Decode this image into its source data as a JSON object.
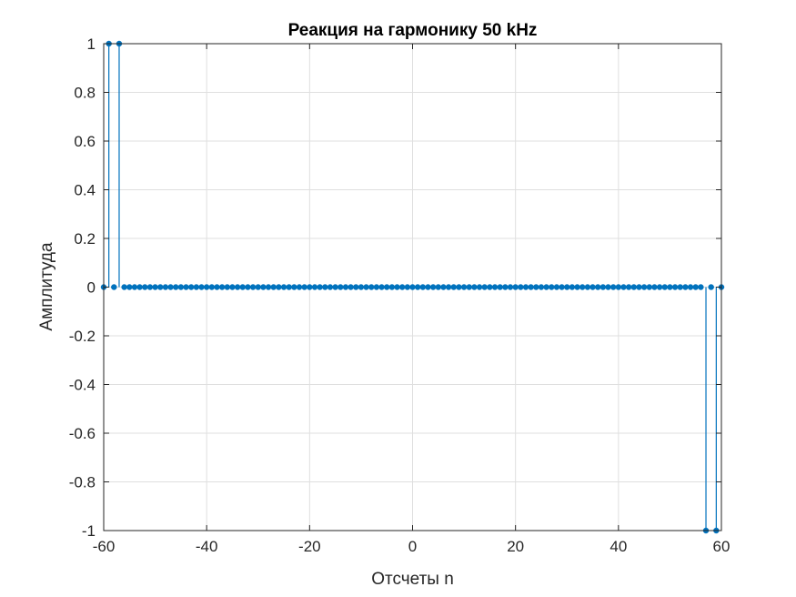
{
  "chart_data": {
    "type": "stem",
    "title": "Реакция на гармонику 50 kHz",
    "xlabel": "Отсчеты n",
    "ylabel": "Амплитуда",
    "xlim": [
      -60,
      60
    ],
    "ylim": [
      -1,
      1
    ],
    "grid": true,
    "x_ticks": [
      -60,
      -40,
      -20,
      0,
      20,
      40,
      60
    ],
    "x_tick_labels": [
      "-60",
      "-40",
      "-20",
      "0",
      "20",
      "40",
      "60"
    ],
    "y_ticks": [
      -1,
      -0.8,
      -0.6,
      -0.4,
      -0.2,
      0,
      0.2,
      0.4,
      0.6,
      0.8,
      1
    ],
    "y_tick_labels": [
      "-1",
      "-0.8",
      "-0.6",
      "-0.4",
      "-0.2",
      "0",
      "0.2",
      "0.4",
      "0.6",
      "0.8",
      "1"
    ],
    "series_color": "#0072BD",
    "x_range": [
      -60,
      60
    ],
    "nonzero_points": [
      {
        "x": -59,
        "y": 1
      },
      {
        "x": -57,
        "y": 1
      },
      {
        "x": 57,
        "y": -1
      },
      {
        "x": 59,
        "y": -1
      }
    ],
    "default_y": 0
  }
}
